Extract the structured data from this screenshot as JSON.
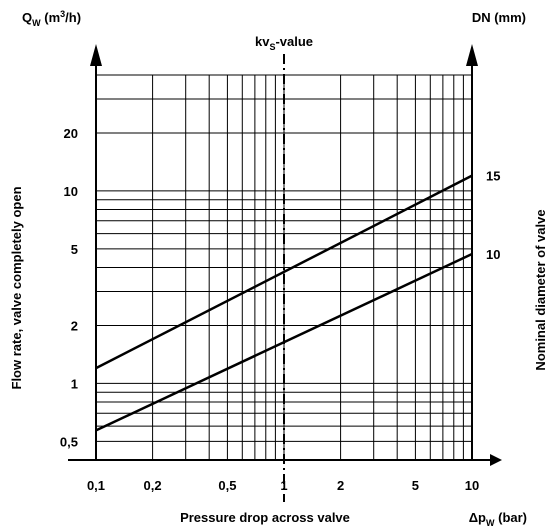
{
  "chart_data": {
    "type": "line",
    "x_scale": "log",
    "y_scale": "log",
    "xlim": [
      0.1,
      10
    ],
    "ylim": [
      0.4,
      40
    ],
    "grid": true,
    "xlabel": "Pressure drop across valve",
    "xunit_pre": "Δp",
    "xunit_sub": "W",
    "xunit_post": " (bar)",
    "ylabel": "Flow rate, valve completely open",
    "yunit_pre": "Q",
    "yunit_sub": "W",
    "yunit_mid": " (m",
    "yunit_sup": "3",
    "yunit_post": "/h)",
    "y2label": "Nominal diameter of valve",
    "y2unit": "DN (mm)",
    "reference_line": {
      "x": 1,
      "label_pre": "kv",
      "label_sub": "S",
      "label_post": "-value",
      "style": "dash-dot"
    },
    "x_ticks": [
      {
        "value": 0.1,
        "label": "0,1"
      },
      {
        "value": 0.2,
        "label": "0,2"
      },
      {
        "value": 0.5,
        "label": "0,5"
      },
      {
        "value": 1,
        "label": "1"
      },
      {
        "value": 2,
        "label": "2"
      },
      {
        "value": 5,
        "label": "5"
      },
      {
        "value": 10,
        "label": "10"
      }
    ],
    "y_ticks": [
      {
        "value": 0.5,
        "label": "0,5"
      },
      {
        "value": 1,
        "label": "1"
      },
      {
        "value": 2,
        "label": "2"
      },
      {
        "value": 5,
        "label": "5"
      },
      {
        "value": 10,
        "label": "10"
      },
      {
        "value": 20,
        "label": "20"
      }
    ],
    "series": [
      {
        "name": "15",
        "x": [
          0.1,
          10
        ],
        "y": [
          1.2,
          12
        ]
      },
      {
        "name": "10",
        "x": [
          0.1,
          10
        ],
        "y": [
          0.57,
          4.7
        ]
      }
    ]
  }
}
